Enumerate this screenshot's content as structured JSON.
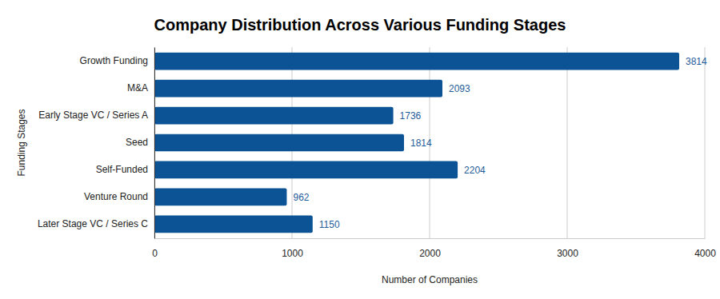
{
  "chart_data": {
    "type": "bar",
    "orientation": "horizontal",
    "title": "Company Distribution Across Various Funding Stages",
    "x_label": "Number of Companies",
    "y_label": "Funding Stages",
    "categories": [
      "Growth Funding",
      "M&A",
      "Early Stage VC / Series A",
      "Seed",
      "Self-Funded",
      "Venture Round",
      "Later Stage VC / Series C"
    ],
    "values": [
      3814,
      2093,
      1736,
      1814,
      2204,
      962,
      1150
    ],
    "color": "#0b5394",
    "xlim": [
      0,
      4000
    ],
    "xticks": [
      0,
      1000,
      2000,
      3000,
      4000
    ],
    "grid": true,
    "data_labels": true
  }
}
